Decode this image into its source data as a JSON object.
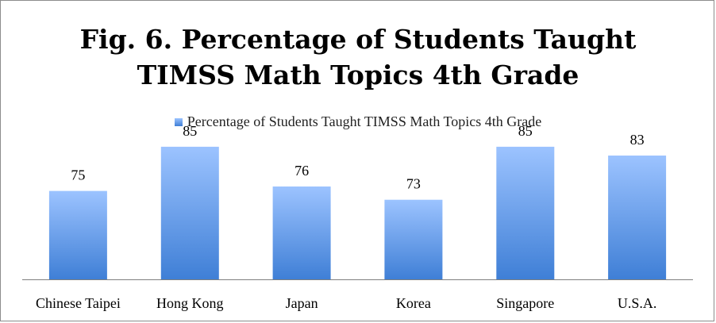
{
  "chart_data": {
    "type": "bar",
    "title_line1": "Fig. 6. Percentage of Students Taught",
    "title_line2": "TIMSS Math Topics 4th Grade",
    "categories": [
      "Chinese Taipei",
      "Hong Kong",
      "Japan",
      "Korea",
      "Singapore",
      "U.S.A."
    ],
    "series": [
      {
        "name": "Percentage of Students Taught TIMSS Math Topics 4th Grade",
        "values": [
          75,
          85,
          76,
          73,
          85,
          83
        ]
      }
    ],
    "data_labels": [
      "75",
      "85",
      "76",
      "73",
      "85",
      "83"
    ],
    "ylim": [
      55,
      90
    ],
    "legend_position": "top",
    "grid": false,
    "colors": {
      "bar_top": "#9cc3ff",
      "bar_bottom": "#3f7fd6",
      "axis": "#7f7f7f"
    }
  }
}
